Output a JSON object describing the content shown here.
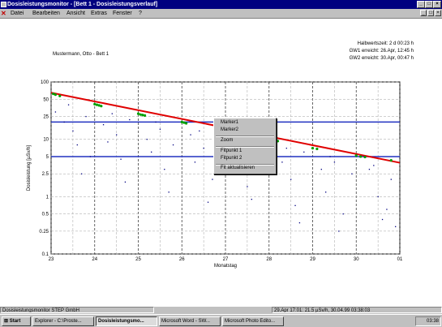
{
  "window": {
    "title": "Dosisleistungsmonitor - [Bett 1 - Dosisleistungsverlauf]",
    "caption_buttons": [
      "_",
      "□",
      "×"
    ],
    "mdi_buttons": [
      "_",
      "□",
      "×"
    ]
  },
  "menu": [
    "Datei",
    "Bearbeiten",
    "Ansicht",
    "Extras",
    "Fenster",
    "?"
  ],
  "patient": "Mustermann, Otto - Bett 1",
  "info": {
    "halbwertszeit": "Halbwertszeit: 2 d 00:23 h",
    "gw1": "GW1 erreicht: 26.Apr, 12:45 h",
    "gw2": "GW2 erreicht: 30.Apr, 00:47 h"
  },
  "context_menu": [
    "Marker1",
    "Marker2",
    "Zoom",
    "Fitpunkt 1",
    "Fitpunkt 2",
    "Fit aktualisieren"
  ],
  "statusbar": {
    "left": "Dosisleistungsmonitor STEP GmbH",
    "right": "29.Apr 17:01: 21.5 µSv/h, 30.04.99 03:38:03"
  },
  "taskbar": {
    "start": "Start",
    "buttons": [
      "Explorer - C:\\Proste...",
      "Dosisleistungsmo...",
      "Microsoft Word - SW...",
      "Microsoft Photo Edito..."
    ],
    "clock": "03:38"
  },
  "colors": {
    "fit_line": "#e00000",
    "limit_line": "#2030c0",
    "points": "#000080",
    "fit_points": "#00a000",
    "title_bar": "#000080"
  },
  "chart_data": {
    "type": "scatter",
    "title": "",
    "xlabel": "Monatstag",
    "ylabel": "Dosisleistung [µSv/h]",
    "y_scale": "log",
    "xlim": [
      23,
      31
    ],
    "ylim": [
      0.1,
      100
    ],
    "x_tick_labels": [
      "23",
      "24",
      "25",
      "26",
      "27",
      "28",
      "29",
      "30",
      "01"
    ],
    "y_ticks": [
      100,
      50,
      25,
      10,
      5,
      2.5,
      1,
      0.5,
      0.25,
      0.1
    ],
    "y_tick_labels": [
      "100",
      "50",
      "25",
      "10",
      "5",
      "2.5",
      "1",
      "0.5",
      "0.25",
      "0.1"
    ],
    "grid": true,
    "limit_lines": [
      {
        "name": "GW1",
        "value": 20
      },
      {
        "name": "GW2",
        "value": 5
      }
    ],
    "fit_line": {
      "x": [
        23,
        31
      ],
      "y": [
        65,
        3.9
      ]
    },
    "series": [
      {
        "marker": "green-dot",
        "x": [
          23.05,
          23.1,
          23.2,
          24.0,
          24.05,
          24.1,
          24.15,
          25.0,
          25.05,
          25.1,
          25.15,
          26.0,
          26.05,
          26.1,
          27.0,
          27.1,
          28.0,
          28.1,
          28.2,
          29.0,
          29.1,
          30.0,
          30.1,
          30.2,
          30.8
        ],
        "y": [
          62,
          60,
          57,
          41,
          40,
          39,
          38,
          28,
          27,
          26.5,
          26,
          20,
          19.5,
          19,
          14,
          13.7,
          10,
          9.7,
          9.3,
          7,
          6.8,
          5.2,
          5,
          4.9,
          4.3
        ]
      },
      {
        "marker": "dot",
        "x": [
          23.1,
          23.3,
          23.5,
          23.6,
          23.8,
          23.9,
          24.2,
          24.3,
          24.5,
          24.6,
          24.8,
          25.2,
          25.3,
          25.5,
          25.6,
          25.8,
          26.2,
          26.3,
          26.5,
          26.7,
          26.9,
          27.2,
          27.3,
          27.5,
          27.7,
          27.9,
          28.3,
          28.5,
          28.6,
          28.8,
          29.2,
          29.3,
          29.5,
          29.7,
          29.9,
          30.3,
          30.5,
          30.6,
          30.8,
          30.9,
          23.4,
          24.4,
          25.4,
          26.4,
          27.4,
          28.4,
          29.4,
          30.4,
          23.7,
          24.7,
          25.7,
          26.6,
          27.6,
          28.7,
          29.6,
          30.7
        ],
        "y": [
          30,
          20,
          14,
          8,
          25,
          5,
          18,
          9,
          12,
          4.5,
          22,
          10,
          6,
          15,
          3,
          8,
          12,
          4,
          7,
          2,
          10,
          6,
          3.5,
          1.5,
          5,
          8,
          4,
          2,
          0.7,
          6,
          3,
          1.2,
          4,
          0.5,
          2.5,
          3,
          1,
          0.4,
          2,
          0.3,
          40,
          28,
          20,
          14,
          9,
          7,
          5,
          3.5,
          2.5,
          1.8,
          1.2,
          0.8,
          0.9,
          0.35,
          0.25,
          0.6
        ]
      }
    ]
  }
}
